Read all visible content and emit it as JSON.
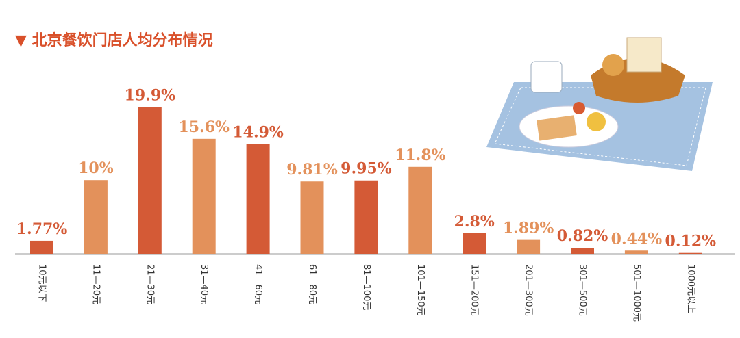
{
  "chart_data": {
    "type": "bar",
    "title": "▼ 北京餐饮门店人均分布情况",
    "categories": [
      "10元以下",
      "11—20元",
      "21—30元",
      "31—40元",
      "41—60元",
      "61—80元",
      "81—100元",
      "101—150元",
      "151—200元",
      "201—300元",
      "301—500元",
      "501—1000元",
      "1000元以上"
    ],
    "values": [
      1.77,
      10,
      19.9,
      15.6,
      14.9,
      9.81,
      9.95,
      11.8,
      2.8,
      1.89,
      0.82,
      0.44,
      0.12
    ],
    "value_labels": [
      "1.77%",
      "10%",
      "19.9%",
      "15.6%",
      "14.9%",
      "9.81%",
      "9.95%",
      "11.8%",
      "2.8%",
      "1.89%",
      "0.82%",
      "0.44%",
      "0.12%"
    ],
    "colors": [
      "#d45a36",
      "#e3915b",
      "#d45a36",
      "#e3915b",
      "#d45a36",
      "#e3915b",
      "#d45a36",
      "#e3915b",
      "#d45a36",
      "#e3915b",
      "#d45a36",
      "#e3915b",
      "#d45a36"
    ],
    "ylim": [
      0,
      20.5
    ]
  }
}
